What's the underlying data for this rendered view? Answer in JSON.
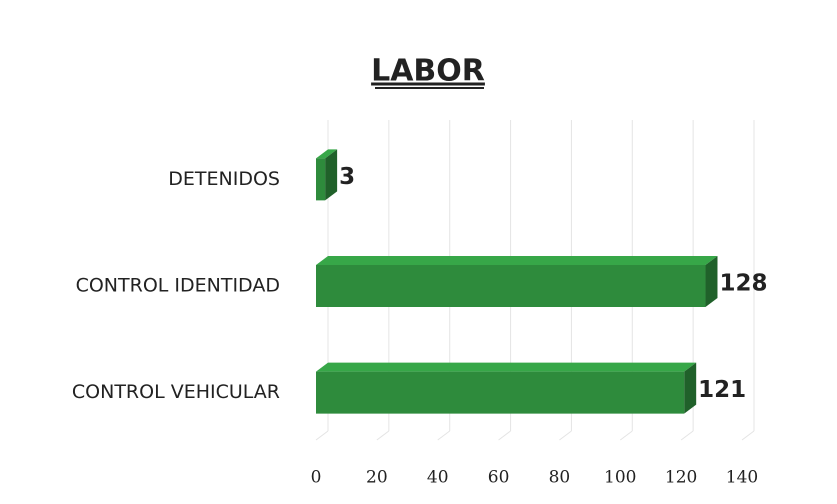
{
  "chart_data": {
    "type": "bar",
    "orientation": "horizontal",
    "title": "LABOR",
    "categories": [
      "DETENIDOS",
      "CONTROL IDENTIDAD",
      "CONTROL VEHICULAR"
    ],
    "values": [
      3,
      128,
      121
    ],
    "color": "#2e8b3c",
    "xlim": [
      0,
      140
    ],
    "xticks": [
      0,
      20,
      40,
      60,
      80,
      100,
      120,
      140
    ],
    "grid": true
  }
}
